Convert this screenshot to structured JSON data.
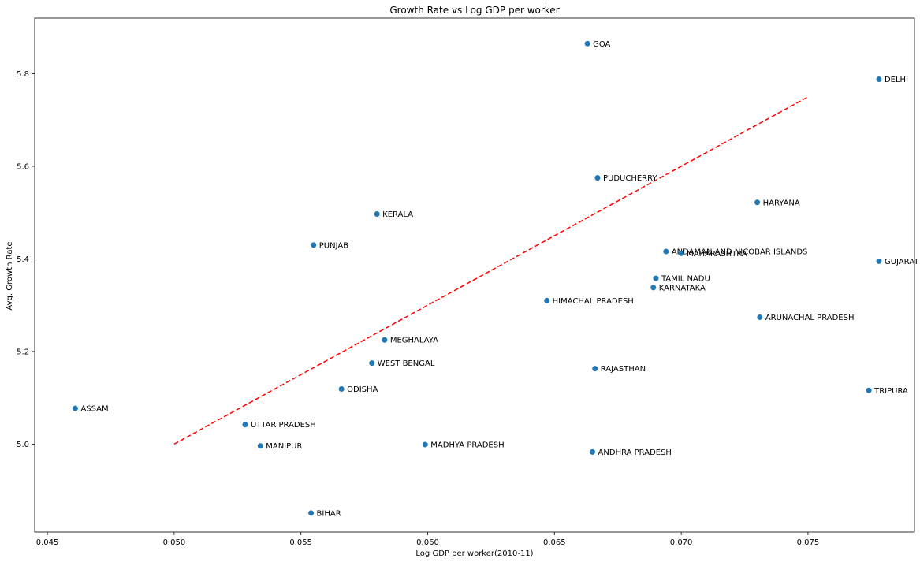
{
  "chart_data": {
    "type": "scatter",
    "title": "Growth Rate vs Log GDP per worker",
    "xlabel": "Log GDP per worker(2010-11)",
    "ylabel": "Avg. Growth Rate",
    "xlim": [
      0.0445,
      0.0792
    ],
    "ylim": [
      4.81,
      5.92
    ],
    "xticks": [
      0.045,
      0.05,
      0.055,
      0.06,
      0.065,
      0.07,
      0.075
    ],
    "xtick_labels": [
      "0.045",
      "0.050",
      "0.055",
      "0.060",
      "0.065",
      "0.070",
      "0.075"
    ],
    "yticks": [
      5.0,
      5.2,
      5.4,
      5.6,
      5.8
    ],
    "ytick_labels": [
      "5.0",
      "5.2",
      "5.4",
      "5.6",
      "5.8"
    ],
    "grid": false,
    "marker_color": "#1f77b4",
    "points": [
      {
        "label": "GOA",
        "x": 0.0663,
        "y": 5.865
      },
      {
        "label": "DELHI",
        "x": 0.0778,
        "y": 5.788
      },
      {
        "label": "PUDUCHERRY",
        "x": 0.0667,
        "y": 5.575
      },
      {
        "label": "HARYANA",
        "x": 0.073,
        "y": 5.522
      },
      {
        "label": "KERALA",
        "x": 0.058,
        "y": 5.497
      },
      {
        "label": "PUNJAB",
        "x": 0.0555,
        "y": 5.43
      },
      {
        "label": "ANDAMAN AND NICOBAR ISLANDS",
        "x": 0.0694,
        "y": 5.416
      },
      {
        "label": "MAHARASHTRA",
        "x": 0.07,
        "y": 5.412
      },
      {
        "label": "GUJARAT",
        "x": 0.0778,
        "y": 5.395
      },
      {
        "label": "TAMIL NADU",
        "x": 0.069,
        "y": 5.358
      },
      {
        "label": "KARNATAKA",
        "x": 0.0689,
        "y": 5.338
      },
      {
        "label": "HIMACHAL PRADESH",
        "x": 0.0647,
        "y": 5.31
      },
      {
        "label": "ARUNACHAL PRADESH",
        "x": 0.0731,
        "y": 5.274
      },
      {
        "label": "MEGHALAYA",
        "x": 0.0583,
        "y": 5.225
      },
      {
        "label": "WEST BENGAL",
        "x": 0.0578,
        "y": 5.175
      },
      {
        "label": "RAJASTHAN",
        "x": 0.0666,
        "y": 5.163
      },
      {
        "label": "ODISHA",
        "x": 0.0566,
        "y": 5.119
      },
      {
        "label": "TRIPURA",
        "x": 0.0774,
        "y": 5.116
      },
      {
        "label": "ASSAM",
        "x": 0.0461,
        "y": 5.077
      },
      {
        "label": "UTTAR PRADESH",
        "x": 0.0528,
        "y": 5.042
      },
      {
        "label": "MANIPUR",
        "x": 0.0534,
        "y": 4.996
      },
      {
        "label": "MADHYA PRADESH",
        "x": 0.0599,
        "y": 4.999
      },
      {
        "label": "ANDHRA PRADESH",
        "x": 0.0665,
        "y": 4.983
      },
      {
        "label": "BIHAR",
        "x": 0.0554,
        "y": 4.851
      }
    ],
    "trend_line": {
      "x": [
        0.05,
        0.075
      ],
      "y": [
        5.0,
        5.75
      ],
      "color": "#ff0000",
      "style": "dashed"
    }
  }
}
